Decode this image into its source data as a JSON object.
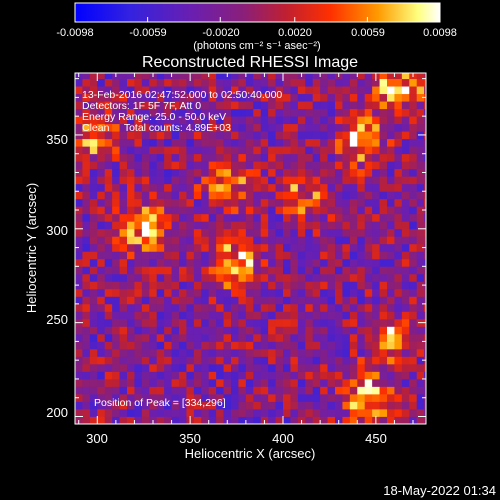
{
  "colorbar": {
    "tick_labels": [
      "-0.0098",
      "-0.0059",
      "-0.0020",
      "0.0020",
      "0.0059",
      "0.0098"
    ],
    "tick_values": [
      -0.0098,
      -0.0059,
      -0.002,
      0.002,
      0.0059,
      0.0098
    ],
    "range": [
      -0.0098,
      0.0098
    ],
    "units_label": "(photons cm⁻² s⁻¹ asec⁻²)",
    "colors": [
      "#0000ff",
      "#5a18c8",
      "#8a1f8a",
      "#c02040",
      "#ff3000",
      "#ff9a00",
      "#ffff80",
      "#ffffff"
    ]
  },
  "info": {
    "line1": "13-Feb-2016 02:47:52.000 to 02:50:40.000",
    "line2": "Detectors: 1F 5F 7F, Att 0",
    "line3": "Energy Range: 25.0 - 50.0 keV",
    "line4": "Clean     Total counts: 4.89E+03",
    "peak": "Position of Peak = [334,296]"
  },
  "footer": {
    "timestamp": "18-May-2022 01:34"
  },
  "chart_data": {
    "type": "heatmap",
    "title": "Reconstructed RHESSI Image",
    "xlabel": "Heliocentric X (arcsec)",
    "ylabel": "Heliocentric Y (arcsec)",
    "xlim": [
      288,
      477
    ],
    "ylim": [
      196,
      383
    ],
    "xticks": [
      300,
      350,
      400,
      450
    ],
    "yticks": [
      200,
      250,
      300,
      350
    ],
    "xtick_labels": [
      "300",
      "350",
      "400",
      "450"
    ],
    "ytick_labels": [
      "200",
      "250",
      "300",
      "350"
    ],
    "pixel_size_arcsec": 4,
    "value_range": [
      -0.0098,
      0.0098
    ],
    "sources": [
      {
        "x": 462,
        "y": 375,
        "peak": 0.0098
      },
      {
        "x": 443,
        "y": 347,
        "peak": 0.0085
      },
      {
        "x": 370,
        "y": 324,
        "peak": 0.0082
      },
      {
        "x": 325,
        "y": 300,
        "peak": 0.0095
      },
      {
        "x": 374,
        "y": 282,
        "peak": 0.0087
      },
      {
        "x": 414,
        "y": 318,
        "peak": 0.0065
      },
      {
        "x": 300,
        "y": 349,
        "peak": 0.006
      },
      {
        "x": 458,
        "y": 242,
        "peak": 0.0072
      },
      {
        "x": 445,
        "y": 210,
        "peak": 0.009
      }
    ],
    "background_level": -0.0015,
    "noise_amplitude": 0.0045
  }
}
